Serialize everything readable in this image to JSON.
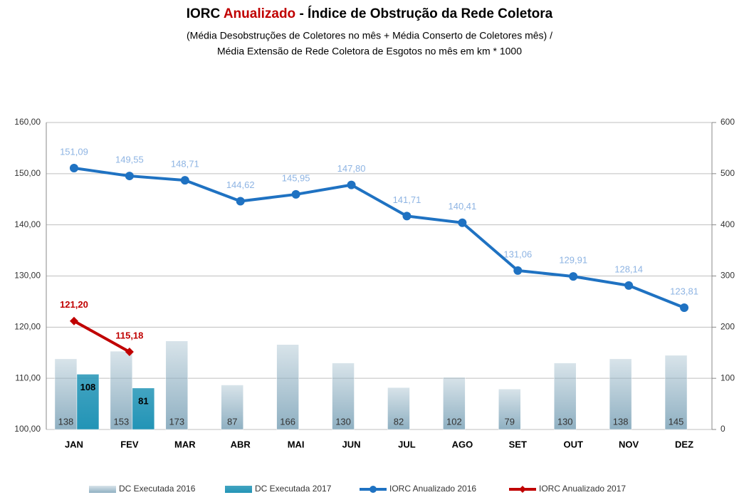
{
  "chart_data": {
    "type": "bar-line",
    "title": "IORC",
    "title_highlight": "Anualizado",
    "title_rest": "- Índice de Obstrução da Rede Coletora",
    "subtitle": [
      "(Média Desobstruções de Coletores no mês + Média Conserto de Coletores mês) /",
      "Média Extensão de Rede Coletora de Esgotos no mês  em km * 1000"
    ],
    "categories": [
      "JAN",
      "FEV",
      "MAR",
      "ABR",
      "MAI",
      "JUN",
      "JUL",
      "AGO",
      "SET",
      "OUT",
      "NOV",
      "DEZ"
    ],
    "ylim": [
      100,
      160
    ],
    "yticks": [
      {
        "value": 100,
        "label": "100,00"
      },
      {
        "value": 110,
        "label": "110,00"
      },
      {
        "value": 120,
        "label": "120,00"
      },
      {
        "value": 130,
        "label": "130,00"
      },
      {
        "value": 140,
        "label": "140,00"
      },
      {
        "value": 150,
        "label": "150,00"
      },
      {
        "value": 160,
        "label": "160,00"
      }
    ],
    "y2lim": [
      0,
      600
    ],
    "y2ticks": [
      0,
      100,
      200,
      300,
      400,
      500,
      600
    ],
    "grid": true,
    "legend": "bottom",
    "series": [
      {
        "name": "DC Executada 2016",
        "kind": "bar",
        "axis": "y2",
        "color": "#8fb0c2",
        "values": [
          138,
          153,
          173,
          87,
          166,
          130,
          82,
          102,
          79,
          130,
          138,
          145
        ]
      },
      {
        "name": "DC Executada 2017",
        "kind": "bar",
        "axis": "y2",
        "color": "#2294b6",
        "values": [
          108,
          81,
          null,
          null,
          null,
          null,
          null,
          null,
          null,
          null,
          null,
          null
        ]
      },
      {
        "name": "IORC Anualizado 2016",
        "kind": "line",
        "color": "#1f72c2",
        "label_color": "#8eb4e3",
        "marker": "circle",
        "values": [
          151.09,
          149.55,
          148.71,
          144.62,
          145.95,
          147.8,
          141.71,
          140.41,
          131.06,
          129.91,
          128.14,
          123.81
        ],
        "value_labels": [
          "151,09",
          "149,55",
          "148,71",
          "144,62",
          "145,95",
          "147,80",
          "141,71",
          "140,41",
          "131,06",
          "129,91",
          "128,14",
          "123,81"
        ]
      },
      {
        "name": "IORC Anualizado 2017",
        "kind": "line",
        "color": "#c00000",
        "label_color": "#c00000",
        "marker": "diamond",
        "values": [
          121.2,
          115.18,
          null,
          null,
          null,
          null,
          null,
          null,
          null,
          null,
          null,
          null
        ],
        "value_labels": [
          "121,20",
          "115,18",
          null,
          null,
          null,
          null,
          null,
          null,
          null,
          null,
          null,
          null
        ]
      }
    ]
  }
}
